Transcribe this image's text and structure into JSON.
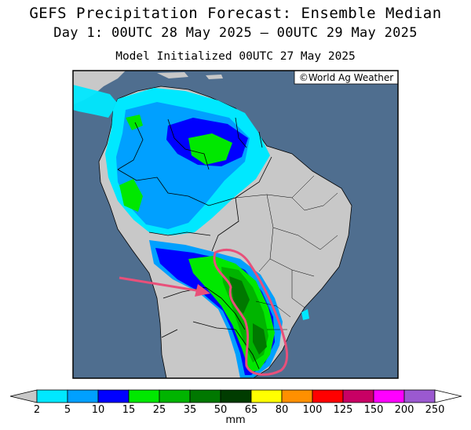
{
  "header": {
    "title": "GEFS Precipitation Forecast: Ensemble Median",
    "period": "Day 1: 00UTC 28 May 2025 — 00UTC 29 May 2025",
    "initialized": "Model Initialized 00UTC 27 May 2025"
  },
  "map": {
    "copyright": "©World Ag Weather",
    "ocean_color": "#4f6e8f",
    "land_color": "#c8c8c8",
    "highlight_color": "#e8507a"
  },
  "legend": {
    "unit": "mm",
    "ticks": [
      "2",
      "5",
      "10",
      "15",
      "25",
      "35",
      "50",
      "65",
      "80",
      "100",
      "125",
      "150",
      "200",
      "250"
    ],
    "colors": [
      "#00e8ff",
      "#00a0ff",
      "#0000ff",
      "#00e800",
      "#00b400",
      "#007800",
      "#003c00",
      "#ffff00",
      "#ff9000",
      "#ff0000",
      "#c80064",
      "#ff00ff",
      "#9b59d0"
    ],
    "below_color": "#c8c8c8",
    "above_color": "#ffffff"
  }
}
